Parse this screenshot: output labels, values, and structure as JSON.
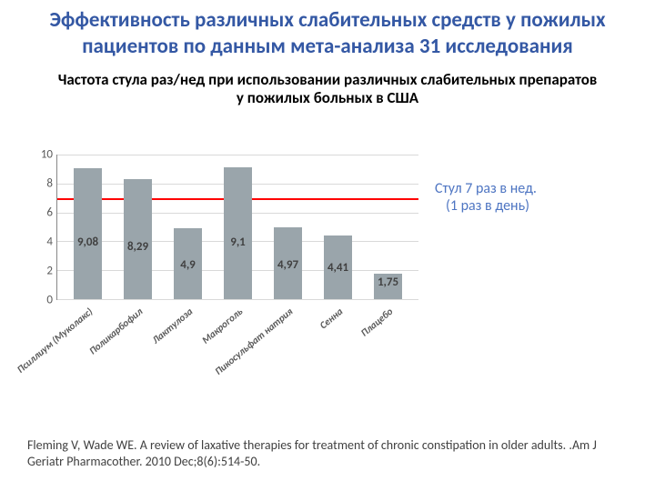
{
  "title": {
    "text": "Эффективность различных слабительных средств у пожилых пациентов по данным мета-анализа 31 исследования",
    "color": "#3458a4",
    "fontsize": 23
  },
  "subtitle": {
    "text": "Частота стула раз/нед  при использовании различных слабительных препаратов у пожилых больных в США",
    "color": "#000000",
    "fontsize": 17
  },
  "chart": {
    "type": "bar",
    "categories": [
      "Псиллиум (Муколакс)",
      "Поликарбофил",
      "Лактулоза",
      "Макроголь",
      "Пикосульфат натрия",
      "Сенна",
      "Плацебо"
    ],
    "values": [
      9.08,
      8.29,
      4.9,
      9.1,
      4.97,
      4.41,
      1.75
    ],
    "bar_color": "#9aa5ab",
    "value_label_color": "#404040",
    "value_label_fontsize": 13,
    "ylim": [
      0,
      10
    ],
    "ytick_step": 2,
    "ytick_fontsize": 13,
    "ytick_color": "#595959",
    "grid_color": "#d9d9d9",
    "category_fontsize": 11,
    "category_color": "#595959",
    "reference_line": {
      "value": 7,
      "color": "#ff0000",
      "width": 2
    },
    "bar_width_rel": 0.55
  },
  "annotation": {
    "line1": "Стул 7 раз в нед.",
    "line2": "(1 раз в день)",
    "color": "#4e75c2",
    "fontsize": 16
  },
  "citation": {
    "text": "Fleming V, Wade WE. A review of laxative therapies for treatment of chronic constipation in older adults. .Am J Geriatr Pharmacother. 2010 Dec;8(6):514-50.",
    "color": "#404040",
    "fontsize": 14
  }
}
